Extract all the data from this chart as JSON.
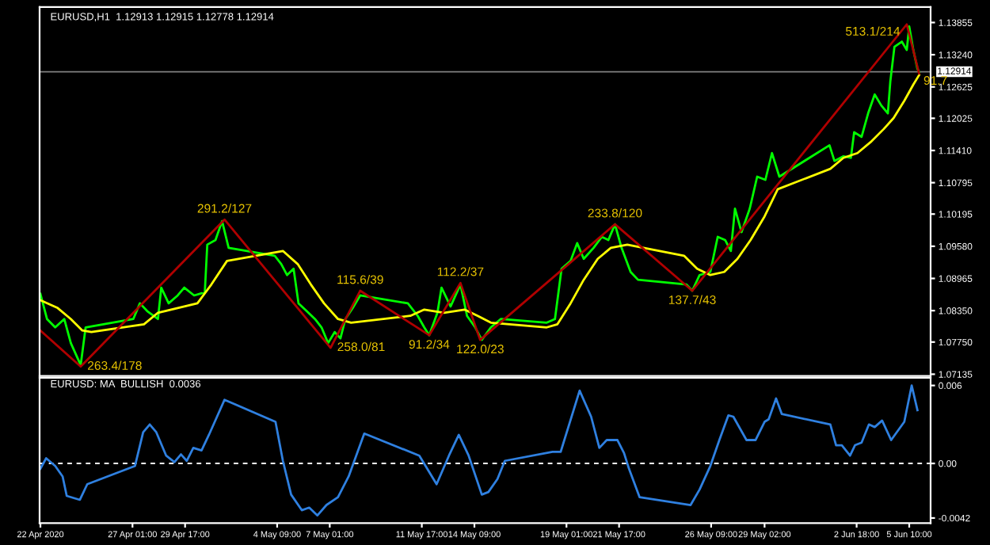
{
  "chart_data": [
    {
      "type": "line",
      "title": "EURUSD,H1  1.12913 1.12915 1.12778 1.12914",
      "series": [
        {
          "color": "#00ff00",
          "x": [
            "2020-04-22T09:00",
            "2020-04-22T17:00",
            "2020-04-23T03:00",
            "2020-04-23T14:00",
            "2020-04-23T22:00",
            "2020-04-24T10:00",
            "2020-04-24T16:00",
            "2020-04-27T02:00",
            "2020-04-27T10:00",
            "2020-04-27T19:00",
            "2020-04-28T08:00",
            "2020-04-28T12:00",
            "2020-04-28T21:00",
            "2020-04-29T08:00",
            "2020-04-29T16:00",
            "2020-04-30T04:00",
            "2020-04-30T17:00",
            "2020-04-30T20:00",
            "2020-05-01T06:00",
            "2020-05-01T14:00",
            "2020-05-01T22:00",
            "2020-05-04T06:00",
            "2020-05-04T14:00",
            "2020-05-04T21:00",
            "2020-05-05T05:00",
            "2020-05-05T11:00",
            "2020-05-05T21:00",
            "2020-05-06T07:00",
            "2020-05-06T15:00",
            "2020-05-06T23:00",
            "2020-05-07T07:00",
            "2020-05-07T14:00",
            "2020-05-07T20:00",
            "2020-05-08T05:00",
            "2020-05-08T14:00",
            "2020-05-11T00:00",
            "2020-05-11T12:00",
            "2020-05-11T20:00",
            "2020-05-12T02:00",
            "2020-05-12T12:00",
            "2020-05-12T17:00",
            "2020-05-13T04:00",
            "2020-05-13T16:00",
            "2020-05-14T00:00",
            "2020-05-14T10:00",
            "2020-05-14T18:00",
            "2020-05-15T05:00",
            "2020-05-15T17:00",
            "2020-05-18T01:00",
            "2020-05-18T11:00",
            "2020-05-18T19:00",
            "2020-05-19T06:00",
            "2020-05-19T14:00",
            "2020-05-19T22:00",
            "2020-05-20T10:00",
            "2020-05-20T20:00",
            "2020-05-21T04:00",
            "2020-05-21T12:00",
            "2020-05-21T20:00",
            "2020-05-22T07:00",
            "2020-05-22T16:00",
            "2020-05-25T03:00",
            "2020-05-25T10:00",
            "2020-05-25T19:00",
            "2020-05-26T08:00",
            "2020-05-26T17:00",
            "2020-05-27T02:00",
            "2020-05-27T09:00",
            "2020-05-27T14:00",
            "2020-05-27T22:00",
            "2020-05-28T08:00",
            "2020-05-28T17:00",
            "2020-05-29T03:00",
            "2020-05-29T11:00",
            "2020-05-29T20:00",
            "2020-06-01T09:00",
            "2020-06-01T15:00",
            "2020-06-02T02:00",
            "2020-06-02T11:00",
            "2020-06-02T15:00",
            "2020-06-03T00:00",
            "2020-06-03T08:00",
            "2020-06-03T16:00",
            "2020-06-04T00:00",
            "2020-06-04T08:00",
            "2020-06-04T11:00",
            "2020-06-04T16:00",
            "2020-06-05T01:00",
            "2020-06-05T07:00",
            "2020-06-05T10:00",
            "2020-06-05T15:00",
            "2020-06-05T20:00",
            "2020-06-05T22:00"
          ],
          "values": [
            1.0867,
            1.0819,
            1.0803,
            1.0819,
            1.0773,
            1.0731,
            1.0803,
            1.0819,
            1.0849,
            1.0834,
            1.0819,
            1.0879,
            1.0849,
            1.0864,
            1.0879,
            1.0864,
            1.087,
            1.0961,
            1.097,
            1.1006,
            1.0955,
            1.094,
            1.0924,
            1.0903,
            1.0915,
            1.0849,
            1.0834,
            1.0819,
            1.0803,
            1.0773,
            1.0794,
            1.0782,
            1.0819,
            1.084,
            1.0864,
            1.0849,
            1.0825,
            1.0803,
            1.0788,
            1.0831,
            1.0879,
            1.0843,
            1.0885,
            1.0825,
            1.0803,
            1.0779,
            1.0803,
            1.0819,
            1.0812,
            1.0819,
            1.0915,
            1.093,
            1.0964,
            1.0934,
            1.0955,
            1.0976,
            1.097,
            1.1,
            1.0955,
            1.0909,
            1.0894,
            1.0885,
            1.0873,
            1.0903,
            1.0909,
            1.0976,
            1.097,
            1.0949,
            1.103,
            1.0985,
            1.103,
            1.1091,
            1.1085,
            1.1136,
            1.1091,
            1.1151,
            1.1121,
            1.113,
            1.1127,
            1.1176,
            1.1167,
            1.1212,
            1.1248,
            1.1227,
            1.1212,
            1.1273,
            1.1339,
            1.1349,
            1.1333,
            1.1378,
            1.1333,
            1.1297,
            1.1291
          ]
        },
        {
          "color": "#ffff00",
          "x": [
            "2020-04-22T09:00",
            "2020-04-23T06:00",
            "2020-04-23T22:00",
            "2020-04-24T12:00",
            "2020-04-24T23:00",
            "2020-04-27T15:00",
            "2020-04-28T08:00",
            "2020-04-29T08:00",
            "2020-04-30T08:00",
            "2020-05-01T01:00",
            "2020-05-01T20:00",
            "2020-05-04T16:00",
            "2020-05-05T10:00",
            "2020-05-06T02:00",
            "2020-05-06T18:00",
            "2020-05-07T11:00",
            "2020-05-08T03:00",
            "2020-05-11T03:00",
            "2020-05-11T20:00",
            "2020-05-12T20:00",
            "2020-05-13T21:00",
            "2020-05-14T13:00",
            "2020-05-15T05:00",
            "2020-05-18T01:00",
            "2020-05-18T14:00",
            "2020-05-19T06:00",
            "2020-05-19T22:00",
            "2020-05-20T15:00",
            "2020-05-21T07:00",
            "2020-05-22T03:00",
            "2020-05-25T00:00",
            "2020-05-25T16:00",
            "2020-05-26T08:00",
            "2020-05-27T01:00",
            "2020-05-27T17:00",
            "2020-05-28T09:00",
            "2020-05-29T02:00",
            "2020-05-29T18:00",
            "2020-06-01T10:00",
            "2020-06-02T02:00",
            "2020-06-02T19:00",
            "2020-06-03T11:00",
            "2020-06-04T03:00",
            "2020-06-04T15:00",
            "2020-06-05T04:00",
            "2020-06-05T15:00",
            "2020-06-05T22:00"
          ],
          "values": [
            1.0855,
            1.084,
            1.0819,
            1.0797,
            1.0794,
            1.0809,
            1.0831,
            1.084,
            1.0849,
            1.0885,
            1.093,
            1.0949,
            1.0924,
            1.0885,
            1.0849,
            1.0819,
            1.0812,
            1.0825,
            1.0837,
            1.0831,
            1.0837,
            1.0825,
            1.0812,
            1.0803,
            1.0809,
            1.0849,
            1.0894,
            1.0934,
            1.0955,
            1.0961,
            1.094,
            1.0915,
            1.0903,
            1.0909,
            1.0934,
            1.097,
            1.1015,
            1.1067,
            1.1106,
            1.1127,
            1.1136,
            1.1157,
            1.1182,
            1.1203,
            1.1236,
            1.1267,
            1.1285
          ]
        },
        {
          "color": "#b00000",
          "x": [
            "2020-04-22T09:00",
            "2020-04-24T10:00",
            "2020-05-01T17:00",
            "2020-05-07T02:00",
            "2020-05-08T14:00",
            "2020-05-12T02:00",
            "2020-05-13T16:00",
            "2020-05-14T16:00",
            "2020-05-21T12:00",
            "2020-05-25T10:00",
            "2020-06-05T07:00",
            "2020-06-05T22:00"
          ],
          "values": [
            1.0797,
            1.0728,
            1.1009,
            1.0764,
            1.0873,
            1.0788,
            1.0888,
            1.0779,
            1.1,
            1.0873,
            1.1382,
            1.1288
          ]
        }
      ],
      "annotations": [
        {
          "text": "263.4/178",
          "x": "2020-04-24T10:00",
          "y": 1.0728
        },
        {
          "text": "291.2/127",
          "x": "2020-05-01T17:00",
          "y": 1.1009
        },
        {
          "text": "258.0/81",
          "x": "2020-05-07T02:00",
          "y": 1.0764
        },
        {
          "text": "115.6/39",
          "x": "2020-05-08T14:00",
          "y": 1.0873
        },
        {
          "text": "91.2/34",
          "x": "2020-05-12T02:00",
          "y": 1.0788
        },
        {
          "text": "112.2/37",
          "x": "2020-05-13T16:00",
          "y": 1.0888
        },
        {
          "text": "122.0/23",
          "x": "2020-05-14T16:00",
          "y": 1.0779
        },
        {
          "text": "233.8/120",
          "x": "2020-05-21T12:00",
          "y": 1.1
        },
        {
          "text": "137.7/43",
          "x": "2020-05-25T10:00",
          "y": 1.0873
        },
        {
          "text": "513.1/214",
          "x": "2020-06-05T07:00",
          "y": 1.1382
        },
        {
          "text": "91.7",
          "x": "2020-06-05T22:00",
          "y": 1.1288
        }
      ],
      "ref_lines": [
        {
          "axis": "y",
          "value": 1.12914,
          "label": "1.12914",
          "color": "#808080"
        }
      ],
      "xlim": [
        "2020-04-22T08:00",
        "2020-06-06T12:00"
      ],
      "ylim": [
        1.071,
        1.1415
      ],
      "yticks": [
        1.13855,
        {
          "value": 1.1324,
          "label": "1.13240"
        },
        1.12625,
        1.12025,
        {
          "value": 1.1141,
          "label": "1.11410"
        },
        1.10795,
        1.10195,
        {
          "value": 1.0958,
          "label": "1.09580"
        },
        1.08965,
        {
          "value": 1.0835,
          "label": "1.08350"
        },
        {
          "value": 1.0775,
          "label": "1.07750"
        },
        1.07135
      ],
      "tick_labels": "y"
    },
    {
      "type": "line",
      "title": "EURUSD: MA  BULLISH  0.0036",
      "series": [
        {
          "color": "#2f80e0",
          "x": [
            "2020-04-22T09:00",
            "2020-04-22T16:00",
            "2020-04-23T03:00",
            "2020-04-23T12:00",
            "2020-04-23T17:00",
            "2020-04-24T09:00",
            "2020-04-24T18:00",
            "2020-04-27T04:00",
            "2020-04-27T14:00",
            "2020-04-27T22:00",
            "2020-04-28T06:00",
            "2020-04-28T18:00",
            "2020-04-29T04:00",
            "2020-04-29T12:00",
            "2020-04-29T19:00",
            "2020-04-30T03:00",
            "2020-04-30T13:00",
            "2020-04-30T22:00",
            "2020-05-01T17:00",
            "2020-05-04T07:00",
            "2020-05-04T16:00",
            "2020-05-05T02:00",
            "2020-05-05T15:00",
            "2020-05-06T00:00",
            "2020-05-06T10:00",
            "2020-05-06T21:00",
            "2020-05-07T11:00",
            "2020-05-08T00:00",
            "2020-05-08T19:00",
            "2020-05-11T14:00",
            "2020-05-12T11:00",
            "2020-05-13T02:00",
            "2020-05-13T14:00",
            "2020-05-14T02:00",
            "2020-05-14T18:00",
            "2020-05-15T02:00",
            "2020-05-15T13:00",
            "2020-05-15T22:00",
            "2020-05-18T08:00",
            "2020-05-18T18:00",
            "2020-05-19T17:00",
            "2020-05-20T07:00",
            "2020-05-20T17:00",
            "2020-05-21T02:00",
            "2020-05-21T15:00",
            "2020-05-21T23:00",
            "2020-05-22T05:00",
            "2020-05-22T18:00",
            "2020-05-25T08:00",
            "2020-05-25T19:00",
            "2020-05-26T08:00",
            "2020-05-26T19:00",
            "2020-05-27T06:00",
            "2020-05-27T12:00",
            "2020-05-28T04:00",
            "2020-05-28T15:00",
            "2020-05-29T02:00",
            "2020-05-29T07:00",
            "2020-05-29T16:00",
            "2020-05-29T23:00",
            "2020-06-01T10:00",
            "2020-06-01T17:00",
            "2020-06-02T00:00",
            "2020-06-02T10:00",
            "2020-06-02T16:00",
            "2020-06-03T00:00",
            "2020-06-03T09:00",
            "2020-06-03T16:00",
            "2020-06-04T01:00",
            "2020-06-04T12:00",
            "2020-06-05T04:00",
            "2020-06-05T13:00",
            "2020-06-05T20:00"
          ],
          "values": [
            -0.0004,
            0.0004,
            -0.0002,
            -0.001,
            -0.0025,
            -0.0028,
            -0.0016,
            -0.0002,
            0.0024,
            0.003,
            0.0024,
            0.0006,
            0.0001,
            0.0007,
            0.0002,
            0.0012,
            0.001,
            0.0022,
            0.0049,
            0.0032,
            0.0002,
            -0.0024,
            -0.0036,
            -0.0034,
            -0.004,
            -0.0032,
            -0.0026,
            -0.001,
            0.0023,
            0.0006,
            -0.0016,
            0.0006,
            0.0022,
            0.0006,
            -0.0024,
            -0.0022,
            -0.0012,
            0.0002,
            0.0009,
            0.0009,
            0.0056,
            0.0036,
            0.0012,
            0.0018,
            0.0018,
            0.0008,
            -0.0004,
            -0.0026,
            -0.0032,
            -0.002,
            -0.0002,
            0.0018,
            0.0037,
            0.0036,
            0.0018,
            0.0018,
            0.0032,
            0.0034,
            0.005,
            0.0038,
            0.003,
            0.0014,
            0.0014,
            0.0006,
            0.0014,
            0.0016,
            0.003,
            0.0028,
            0.0033,
            0.0018,
            0.0032,
            0.006,
            0.0041
          ]
        }
      ],
      "ref_lines": [
        {
          "axis": "y",
          "value": 0,
          "color": "#ffffff",
          "line_style": "dashed"
        }
      ],
      "xlim": [
        "2020-04-22T08:00",
        "2020-06-06T12:00"
      ],
      "ylim": [
        -0.0046,
        0.0066
      ],
      "yticks": [
        0.006,
        {
          "value": 0,
          "label": "0.00"
        },
        -0.0042
      ],
      "xticks": [
        {
          "value": "2020-04-22T09:00",
          "label": "22 Apr 2020"
        },
        {
          "value": "2020-04-27T01:00",
          "label": "27 Apr 01:00"
        },
        {
          "value": "2020-04-29T17:00",
          "label": "29 Apr 17:00"
        },
        {
          "value": "2020-05-04T09:00",
          "label": "4 May 09:00"
        },
        {
          "value": "2020-05-07T01:00",
          "label": "7 May 01:00"
        },
        {
          "value": "2020-05-11T17:00",
          "label": "11 May 17:00"
        },
        {
          "value": "2020-05-14T09:00",
          "label": "14 May 09:00"
        },
        {
          "value": "2020-05-19T01:00",
          "label": "19 May 01:00"
        },
        {
          "value": "2020-05-21T17:00",
          "label": "21 May 17:00"
        },
        {
          "value": "2020-05-26T09:00",
          "label": "26 May 09:00"
        },
        {
          "value": "2020-05-29T02:00",
          "label": "29 May 02:00"
        },
        {
          "value": "2020-06-02T18:00",
          "label": "2 Jun 18:00"
        },
        {
          "value": "2020-06-05T10:00",
          "label": "5 Jun 10:00"
        }
      ]
    }
  ]
}
